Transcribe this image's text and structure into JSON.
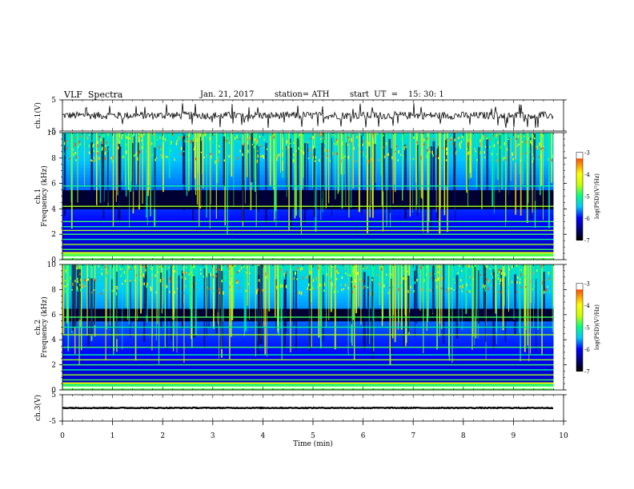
{
  "header": {
    "title": "VLF  Spectra",
    "date": "Jan. 21, 2017",
    "station": "station= ATH",
    "start": "start  UT  =    15: 30: 1"
  },
  "chart_data": [
    {
      "type": "line",
      "panel": "ch1",
      "ylabel": "ch.1(V)",
      "yticks": [
        "5",
        "-5"
      ],
      "ylim": [
        -5,
        5
      ],
      "xlim": [
        0,
        10
      ],
      "data_end": 9.8,
      "series": [
        {
          "baseline": 0.0,
          "noise": 1.2,
          "spike_max": 4.0
        }
      ]
    },
    {
      "type": "heatmap",
      "panel": "ch1-spectrogram",
      "ylabel": "ch.1\nFrequency (kHz)",
      "ylabel_lines": [
        "ch.1",
        "Frequency  (kHz)"
      ],
      "yticks": [
        "0",
        "2",
        "4",
        "6",
        "8",
        "10"
      ],
      "ylim": [
        0,
        10
      ],
      "xlim": [
        0,
        10
      ],
      "data_end": 9.8,
      "colorbar": {
        "label": "log(PSD)(V²/Hz)",
        "ticks": [
          "-3",
          "-4",
          "-5",
          "-6",
          "-7"
        ],
        "range": [
          -7,
          -3
        ]
      },
      "bands_khz": [
        0.5,
        0.8,
        1.2,
        1.6,
        2.0,
        2.3,
        2.6,
        3.0,
        4.2,
        5.8
      ],
      "dark_band_khz": [
        4.0,
        5.5
      ]
    },
    {
      "type": "heatmap",
      "panel": "ch2-spectrogram",
      "ylabel": "ch.2\nFrequency (kHz)",
      "ylabel_lines": [
        "ch.2",
        "Frequency  (kHz)"
      ],
      "yticks": [
        "0",
        "2",
        "4",
        "6",
        "8",
        "10"
      ],
      "ylim": [
        0,
        10
      ],
      "xlim": [
        0,
        10
      ],
      "data_end": 9.8,
      "colorbar": {
        "label": "log(PSD)(V²/Hz)",
        "ticks": [
          "-3",
          "-4",
          "-5",
          "-6",
          "-7"
        ],
        "range": [
          -7,
          -3
        ]
      },
      "bands_khz": [
        0.4,
        0.8,
        1.2,
        1.6,
        2.0,
        2.4,
        2.8,
        3.4,
        4.4,
        5.0,
        5.8
      ],
      "dark_band_khz": [
        5.5,
        6.5
      ]
    },
    {
      "type": "line",
      "panel": "ch3",
      "ylabel": "ch.3(V)",
      "yticks": [
        "5",
        "-5"
      ],
      "ylim": [
        -5,
        5
      ],
      "xlim": [
        0,
        10
      ],
      "data_end": 9.8,
      "series": [
        {
          "baseline": 0.0,
          "noise": 0.15
        }
      ]
    }
  ],
  "xaxis": {
    "label": "Time  (min)",
    "ticks": [
      "0",
      "1",
      "2",
      "3",
      "4",
      "5",
      "6",
      "7",
      "8",
      "9",
      "10"
    ]
  },
  "colors": {
    "colormap": [
      "#000000",
      "#00007f",
      "#0000ff",
      "#00c8ff",
      "#00ff80",
      "#c8ff00",
      "#ffff00",
      "#ff8000",
      "#ff0000",
      "#ffffff"
    ]
  }
}
